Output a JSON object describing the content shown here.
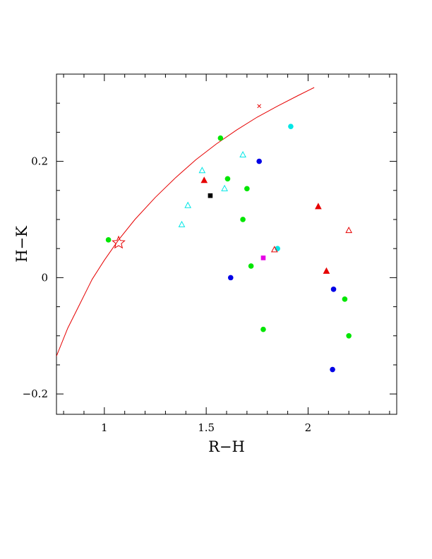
{
  "chart_data": {
    "type": "scatter",
    "title": "",
    "xlabel": "R−H",
    "ylabel": "H−K",
    "xlim": [
      0.765,
      2.435
    ],
    "ylim": [
      -0.235,
      0.35
    ],
    "x_ticks": [
      {
        "value": 1,
        "label": "1"
      },
      {
        "value": 1.5,
        "label": "1.5"
      },
      {
        "value": 2,
        "label": "2"
      }
    ],
    "y_ticks": [
      {
        "value": -0.2,
        "label": "−0.2"
      },
      {
        "value": 0,
        "label": "0"
      },
      {
        "value": 0.2,
        "label": "0.2"
      }
    ],
    "x_minor_step": 0.1,
    "y_minor_step": 0.05,
    "grid": false,
    "colors": {
      "green": "#00e600",
      "blue": "#0000e6",
      "cyan": "#00e6e6",
      "red": "#e60000",
      "black": "#000000",
      "magenta": "#e600e6",
      "curve": "#e60000"
    },
    "curve": {
      "x": [
        0.765,
        0.82,
        0.88,
        0.94,
        1.0,
        1.07,
        1.15,
        1.25,
        1.35,
        1.45,
        1.55,
        1.65,
        1.75,
        1.85,
        1.95,
        2.03
      ],
      "y": [
        -0.135,
        -0.087,
        -0.045,
        -0.003,
        0.03,
        0.065,
        0.1,
        0.138,
        0.172,
        0.203,
        0.23,
        0.254,
        0.276,
        0.295,
        0.313,
        0.327
      ]
    },
    "series": [
      {
        "marker": "filled-circle",
        "color": "green",
        "x": [
          1.02,
          1.57,
          1.605,
          1.7,
          1.68,
          1.72,
          1.78,
          2.18,
          2.2
        ],
        "y": [
          0.065,
          0.24,
          0.17,
          0.153,
          0.1,
          0.02,
          -0.089,
          -0.037,
          -0.1
        ]
      },
      {
        "marker": "filled-circle",
        "color": "blue",
        "x": [
          1.62,
          1.76,
          2.125,
          2.12
        ],
        "y": [
          0.0,
          0.2,
          -0.02,
          -0.158
        ]
      },
      {
        "marker": "filled-circle",
        "color": "cyan",
        "x": [
          1.915,
          1.85
        ],
        "y": [
          0.26,
          0.05
        ]
      },
      {
        "marker": "open-triangle",
        "color": "cyan",
        "x": [
          1.38,
          1.41,
          1.48,
          1.59,
          1.68
        ],
        "y": [
          0.091,
          0.124,
          0.184,
          0.153,
          0.211
        ]
      },
      {
        "marker": "filled-triangle",
        "color": "red",
        "x": [
          1.49,
          2.05,
          2.09
        ],
        "y": [
          0.167,
          0.122,
          0.011
        ]
      },
      {
        "marker": "open-triangle",
        "color": "red",
        "x": [
          2.2,
          1.835
        ],
        "y": [
          0.081,
          0.048
        ]
      },
      {
        "marker": "filled-square",
        "color": "black",
        "x": [
          1.52
        ],
        "y": [
          0.141
        ]
      },
      {
        "marker": "filled-square",
        "color": "magenta",
        "x": [
          1.78
        ],
        "y": [
          0.034
        ]
      },
      {
        "marker": "open-star",
        "color": "red",
        "x": [
          1.07
        ],
        "y": [
          0.06
        ]
      },
      {
        "marker": "cross",
        "color": "red",
        "x": [
          1.76
        ],
        "y": [
          0.295
        ]
      }
    ]
  }
}
